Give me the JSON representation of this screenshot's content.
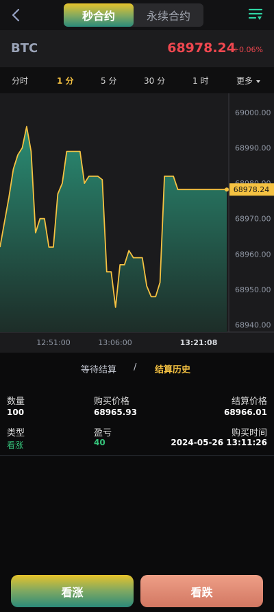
{
  "header": {
    "tabs": [
      {
        "label": "秒合约",
        "active": true
      },
      {
        "label": "永续合约",
        "active": false
      }
    ]
  },
  "ticker": {
    "symbol": "BTC",
    "price": "68978.24",
    "change": "+0.06%",
    "price_color": "#f0474f"
  },
  "intervals": [
    {
      "label": "分时",
      "active": false
    },
    {
      "label": "1 分",
      "active": true
    },
    {
      "label": "5 分",
      "active": false
    },
    {
      "label": "30 分",
      "active": false
    },
    {
      "label": "1 时",
      "active": false
    },
    {
      "label": "更多",
      "active": false
    }
  ],
  "chart_data": {
    "type": "area",
    "x_tick_labels": [
      "12:51:00",
      "13:06:00",
      "13:21:08"
    ],
    "y_tick_labels": [
      "69000.00",
      "68990.00",
      "68980.00",
      "68970.00",
      "68960.00",
      "68950.00",
      "68940.00"
    ],
    "ylim": [
      68938,
      69005
    ],
    "current_price_label": "68978.24",
    "line_color": "#f5c242",
    "fill_top_color": "#2a8d74",
    "fill_bottom_color": "#1d2d28",
    "grid": false,
    "series": [
      {
        "values": [
          68962,
          68969,
          68976,
          68984,
          68988,
          68990,
          68996,
          68989,
          68966,
          68970,
          68970,
          68962,
          68962,
          68977,
          68980,
          68989,
          68989,
          68989,
          68989,
          68980,
          68982,
          68982,
          68982,
          68981,
          68955,
          68955,
          68945,
          68957,
          68957,
          68961,
          68959,
          68959,
          68959,
          68951,
          68948,
          68948,
          68952,
          68982,
          68982,
          68982,
          68978.24,
          68978.24,
          68978.24,
          68978.24,
          68978.24,
          68978.24,
          68978.24,
          68978.24,
          68978.24,
          68978.24,
          68978.24,
          68978.24
        ]
      }
    ]
  },
  "record_tabs": {
    "pending": "等待结算",
    "separator": "/",
    "history": "结算历史",
    "active": "history"
  },
  "record": {
    "quantity_label": "数量",
    "quantity": "100",
    "buy_price_label": "购买价格",
    "buy_price": "68965.93",
    "settle_price_label": "结算价格",
    "settle_price": "68966.01",
    "type_label": "类型",
    "type": "看涨",
    "pnl_label": "盈亏",
    "pnl": "40",
    "buy_time_label": "购买时间",
    "buy_time": "2024-05-26 13:11:26"
  },
  "buttons": {
    "up": "看涨",
    "down": "看跌"
  },
  "icons": {
    "back": "chevron-left-icon",
    "menu": "filter-menu-icon"
  }
}
